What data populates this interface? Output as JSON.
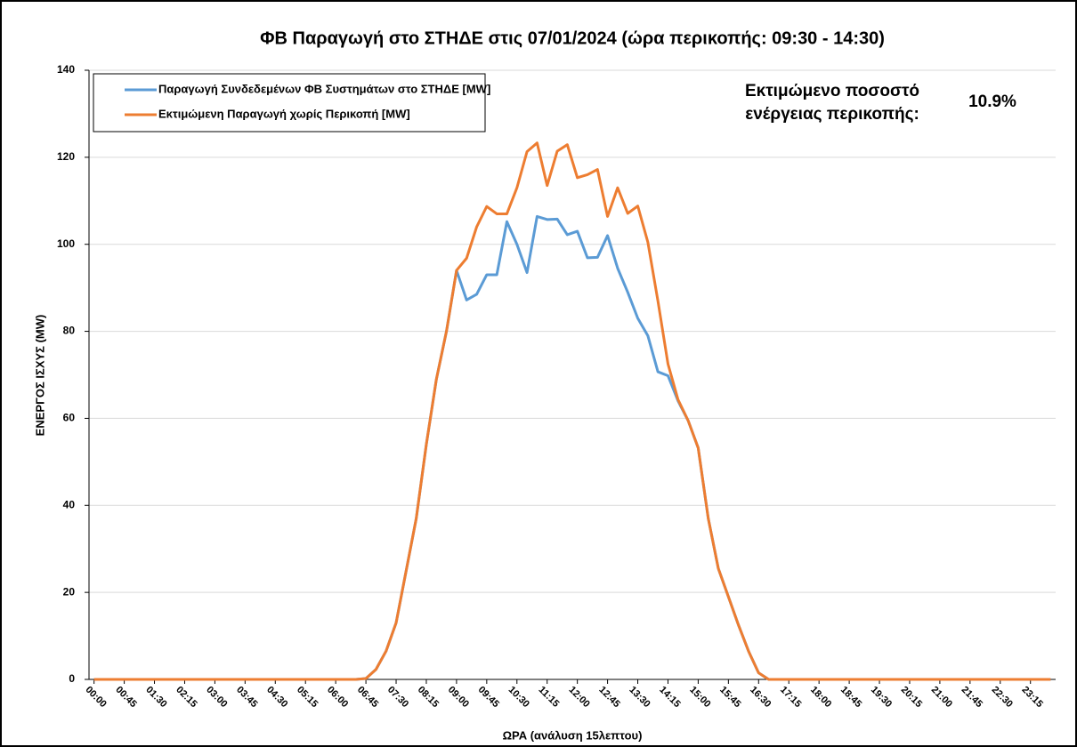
{
  "chart_data": {
    "type": "line",
    "title": "ΦΒ Παραγωγή στο ΣΤΗΔΕ στις 07/01/2024 (ώρα περικοπής: 09:30 - 14:30)",
    "x_label": "ΩΡΑ (ανάλυση 15λεπτου)",
    "y_label": "ΕΝΕΡΓΟΣ ΙΣΧΥΣ (MW)",
    "annotation": {
      "lines": [
        "Εκτιμώμενο ποσοστό",
        "ενέργειας περικοπής:"
      ],
      "value": "10.9%"
    },
    "categories": [
      "00:00",
      null,
      null,
      "00:45",
      null,
      null,
      "01:30",
      null,
      null,
      "02:15",
      null,
      null,
      "03:00",
      null,
      null,
      "03:45",
      null,
      null,
      "04:30",
      null,
      null,
      "05:15",
      null,
      null,
      "06:00",
      null,
      null,
      "06:45",
      null,
      null,
      "07:30",
      null,
      null,
      "08:15",
      null,
      null,
      "09:00",
      null,
      null,
      "09:45",
      null,
      null,
      "10:30",
      null,
      null,
      "11:15",
      null,
      null,
      "12:00",
      null,
      null,
      "12:45",
      null,
      null,
      "13:30",
      null,
      null,
      "14:15",
      null,
      null,
      "15:00",
      null,
      null,
      "15:45",
      null,
      null,
      "16:30",
      null,
      null,
      "17:15",
      null,
      null,
      "18:00",
      null,
      null,
      "18:45",
      null,
      null,
      "19:30",
      null,
      null,
      "20:15",
      null,
      null,
      "21:00",
      null,
      null,
      "21:45",
      null,
      null,
      "22:30",
      null,
      null,
      "23:15",
      null,
      null
    ],
    "series": [
      {
        "name": "Παραγωγή Συνδεδεμένων ΦΒ Συστημάτων στο ΣΤΗΔΕ [MW]",
        "color": "#5b9bd5",
        "values": [
          0,
          0,
          0,
          0,
          0,
          0,
          0,
          0,
          0,
          0,
          0,
          0,
          0,
          0,
          0,
          0,
          0,
          0,
          0,
          0,
          0,
          0,
          0,
          0,
          0,
          0,
          0,
          0.2,
          2.3,
          6.5,
          13,
          25,
          37,
          54,
          69,
          80,
          94,
          87.2,
          88.5,
          93,
          93,
          105.2,
          100,
          93.5,
          106.4,
          105.7,
          105.8,
          102.2,
          103,
          96.9,
          97,
          102,
          94.5,
          89,
          83,
          79,
          70.7,
          69.8,
          64,
          59.5,
          53.2,
          37,
          25.5,
          19,
          12.5,
          6.5,
          1.5,
          0,
          0,
          0,
          0,
          0,
          0,
          0,
          0,
          0,
          0,
          0,
          0,
          0,
          0,
          0,
          0,
          0,
          0,
          0,
          0,
          0,
          0,
          0,
          0,
          0,
          0,
          0,
          0,
          0
        ]
      },
      {
        "name": "Εκτιμώμενη Παραγωγή χωρίς Περικοπή [MW]",
        "color": "#ed7d31",
        "values": [
          0,
          0,
          0,
          0,
          0,
          0,
          0,
          0,
          0,
          0,
          0,
          0,
          0,
          0,
          0,
          0,
          0,
          0,
          0,
          0,
          0,
          0,
          0,
          0,
          0,
          0,
          0,
          0.2,
          2.3,
          6.5,
          13,
          25,
          37,
          54,
          69,
          80,
          94,
          96.8,
          104,
          108.7,
          107,
          107,
          113,
          121.3,
          123.3,
          113.5,
          121.4,
          122.9,
          115.3,
          116,
          117.2,
          106.4,
          113,
          107.1,
          108.8,
          100.5,
          87,
          72.5,
          64.3,
          59.5,
          53.2,
          37,
          25.5,
          19,
          12.5,
          6.5,
          1.5,
          0,
          0,
          0,
          0,
          0,
          0,
          0,
          0,
          0,
          0,
          0,
          0,
          0,
          0,
          0,
          0,
          0,
          0,
          0,
          0,
          0,
          0,
          0,
          0,
          0,
          0,
          0,
          0,
          0
        ]
      }
    ],
    "ylim": [
      0,
      140
    ],
    "yticks": [
      0,
      20,
      40,
      60,
      80,
      100,
      120,
      140
    ],
    "grid": true,
    "legend": "top-left"
  }
}
